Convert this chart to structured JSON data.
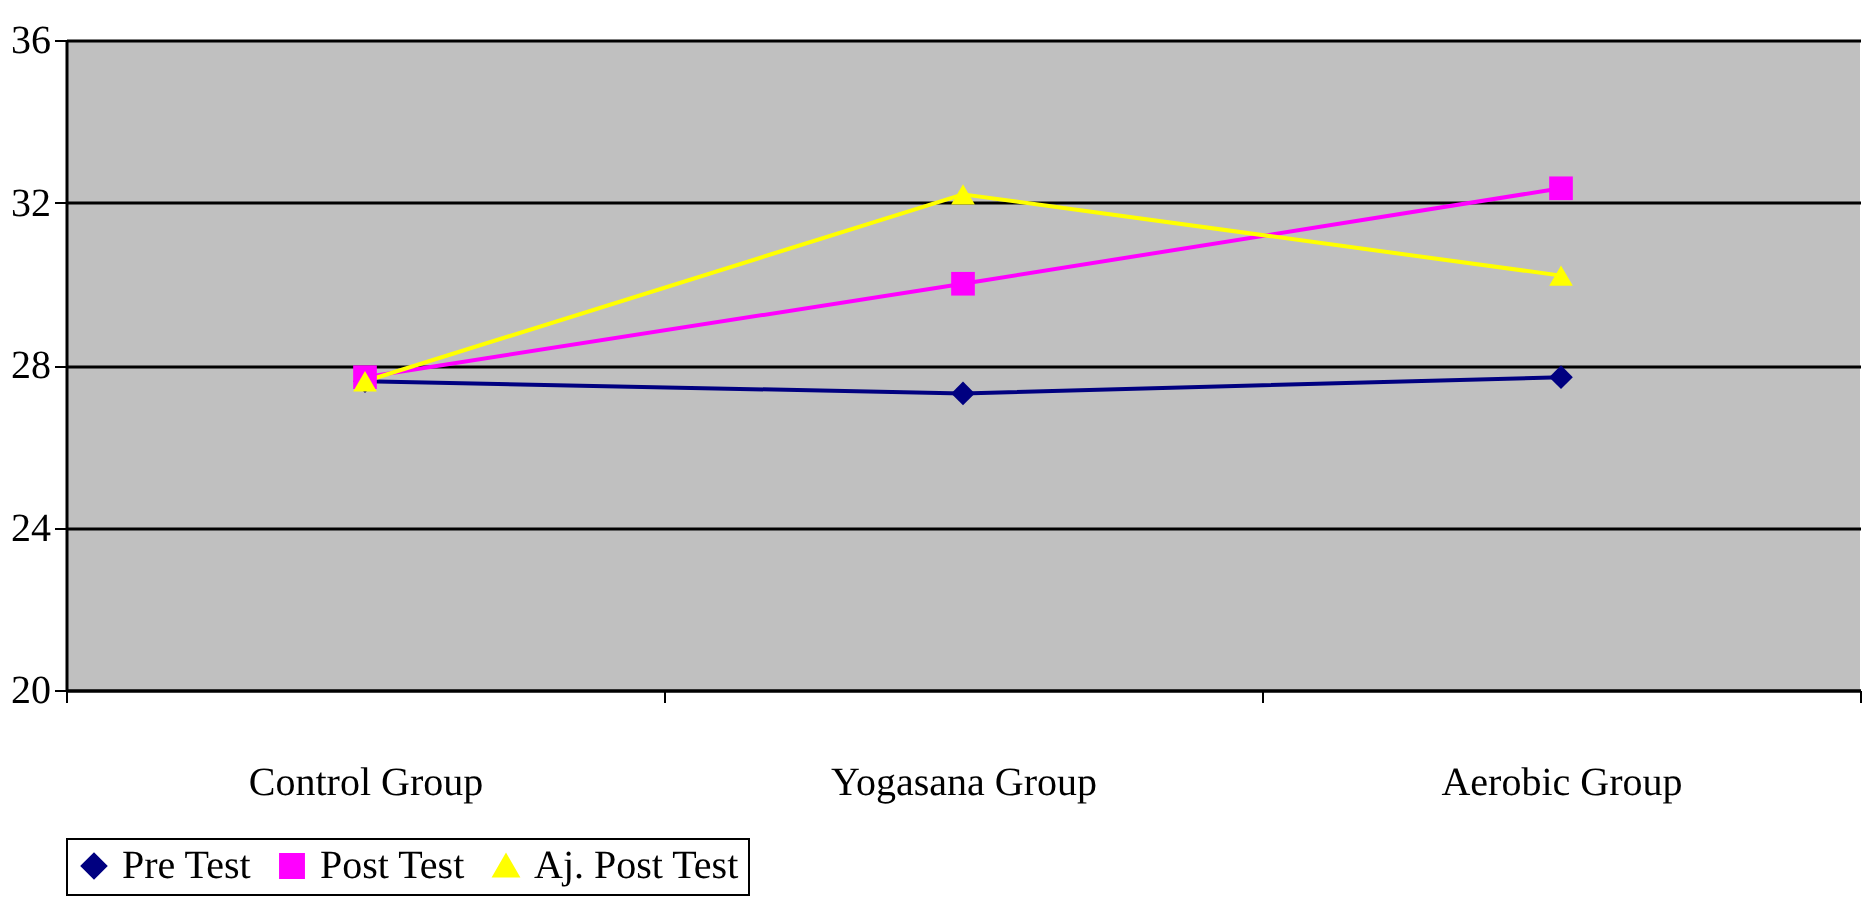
{
  "chart_data": {
    "type": "line",
    "categories": [
      "Control Group",
      "Yogasana Group",
      "Aerobic Group"
    ],
    "series": [
      {
        "name": "Pre Test",
        "color": "#000080",
        "marker": "diamond",
        "values": [
          27.6,
          27.3,
          27.7
        ]
      },
      {
        "name": "Post Test",
        "color": "#ff00ff",
        "marker": "square",
        "values": [
          27.7,
          30.0,
          32.35
        ]
      },
      {
        "name": "Aj. Post Test",
        "color": "#ffff00",
        "marker": "triangle",
        "values": [
          27.6,
          32.2,
          30.2
        ]
      }
    ],
    "ylim": [
      20,
      36
    ],
    "yticks": [
      20,
      24,
      28,
      32,
      36
    ],
    "grid": "y",
    "legend": "bottom",
    "line_style": "solid"
  }
}
